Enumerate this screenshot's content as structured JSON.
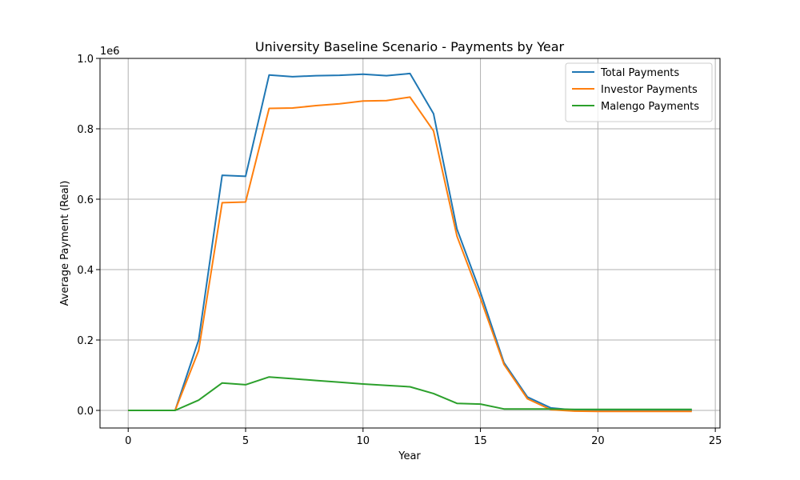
{
  "chart_data": {
    "type": "line",
    "title": "University Baseline Scenario - Payments by Year",
    "xlabel": "Year",
    "ylabel": "Average Payment (Real)",
    "offset_text": "1e6",
    "xlim": [
      -1.2,
      25.2
    ],
    "ylim": [
      -50000,
      1000000
    ],
    "xticks": [
      0,
      5,
      10,
      15,
      20,
      25
    ],
    "yticks": [
      0,
      200000,
      400000,
      600000,
      800000,
      1000000
    ],
    "ytick_labels": [
      "0.0",
      "0.2",
      "0.4",
      "0.6",
      "0.8",
      "1.0"
    ],
    "grid": true,
    "legend_position": "top-right",
    "x": [
      0,
      1,
      2,
      3,
      4,
      5,
      6,
      7,
      8,
      9,
      10,
      11,
      12,
      13,
      14,
      15,
      16,
      17,
      18,
      19,
      20,
      21,
      22,
      23,
      24
    ],
    "series": [
      {
        "name": "Total Payments",
        "color": "#1f77b4",
        "values": [
          0,
          0,
          0,
          200000,
          668000,
          665000,
          953000,
          948000,
          951000,
          952000,
          955000,
          951000,
          957000,
          843000,
          515000,
          335000,
          136000,
          38000,
          7000,
          1000,
          0,
          0,
          0,
          0,
          0
        ]
      },
      {
        "name": "Investor Payments",
        "color": "#ff7f0e",
        "values": [
          0,
          0,
          0,
          170000,
          590000,
          592000,
          858000,
          859000,
          866000,
          871000,
          879000,
          880000,
          890000,
          794000,
          495000,
          318000,
          131000,
          33000,
          2000,
          -2000,
          -3000,
          -3000,
          -3000,
          -3000,
          -3000
        ]
      },
      {
        "name": "Malengo Payments",
        "color": "#2ca02c",
        "values": [
          0,
          0,
          0,
          29000,
          78000,
          73000,
          95000,
          90000,
          85000,
          80000,
          75000,
          71000,
          67000,
          48000,
          20000,
          18000,
          4000,
          4000,
          4000,
          3000,
          3000,
          3000,
          3000,
          3000,
          3000
        ]
      }
    ]
  }
}
